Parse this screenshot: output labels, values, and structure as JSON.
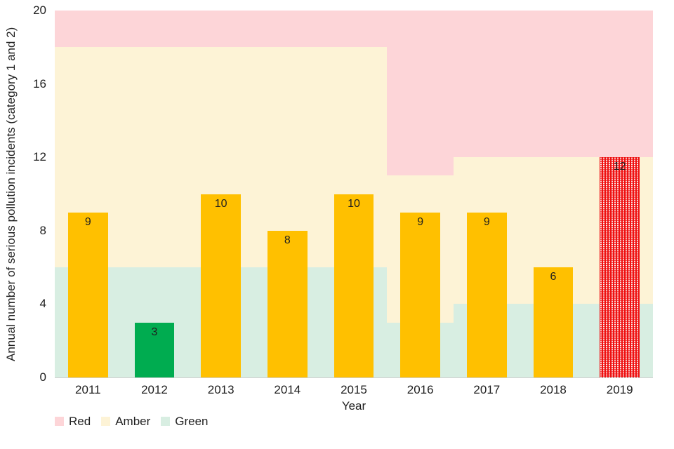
{
  "y_axis": {
    "label": "Annual number of serious pollution incidents (category 1 and 2)",
    "ticks": [
      0,
      4,
      8,
      12,
      16,
      20
    ]
  },
  "x_axis": {
    "label": "Year"
  },
  "legend": {
    "position": "bottom-left",
    "items": [
      {
        "label": "Red",
        "key": "red"
      },
      {
        "label": "Amber",
        "key": "amber"
      },
      {
        "label": "Green",
        "key": "green"
      }
    ]
  },
  "colors": {
    "band_red": "#fdd5d8",
    "band_amber": "#fdf3d6",
    "band_green": "#d8eee2",
    "bar_amber": "#ffc000",
    "bar_green": "#00ac50",
    "bar_red": "#ee1111",
    "axis_line": "#d0d0d0",
    "text": "#1f1f1f"
  },
  "chart_data": {
    "type": "bar",
    "title": "",
    "categories": [
      "2011",
      "2012",
      "2013",
      "2014",
      "2015",
      "2016",
      "2017",
      "2018",
      "2019"
    ],
    "values": [
      9,
      3,
      10,
      8,
      10,
      9,
      9,
      6,
      12
    ],
    "bar_styles": [
      "amber",
      "green",
      "amber",
      "amber",
      "amber",
      "amber",
      "amber",
      "amber",
      "red-dotted"
    ],
    "xlabel": "Year",
    "ylabel": "Annual number of serious pollution incidents (category 1 and 2)",
    "ylim": [
      0,
      20
    ],
    "grid": false,
    "legend_position": "bottom-left",
    "background_bands": [
      {
        "from": "2011",
        "to": "2015",
        "zones": [
          {
            "key": "green",
            "range": [
              0,
              6
            ]
          },
          {
            "key": "amber",
            "range": [
              6,
              18
            ]
          },
          {
            "key": "red",
            "range": [
              18,
              20
            ]
          }
        ]
      },
      {
        "from": "2016",
        "to": "2016",
        "zones": [
          {
            "key": "green",
            "range": [
              0,
              3
            ]
          },
          {
            "key": "amber",
            "range": [
              3,
              11
            ]
          },
          {
            "key": "red",
            "range": [
              11,
              20
            ]
          }
        ]
      },
      {
        "from": "2017",
        "to": "2019",
        "zones": [
          {
            "key": "green",
            "range": [
              0,
              4
            ]
          },
          {
            "key": "amber",
            "range": [
              4,
              12
            ]
          },
          {
            "key": "red",
            "range": [
              12,
              20
            ]
          }
        ]
      }
    ]
  }
}
